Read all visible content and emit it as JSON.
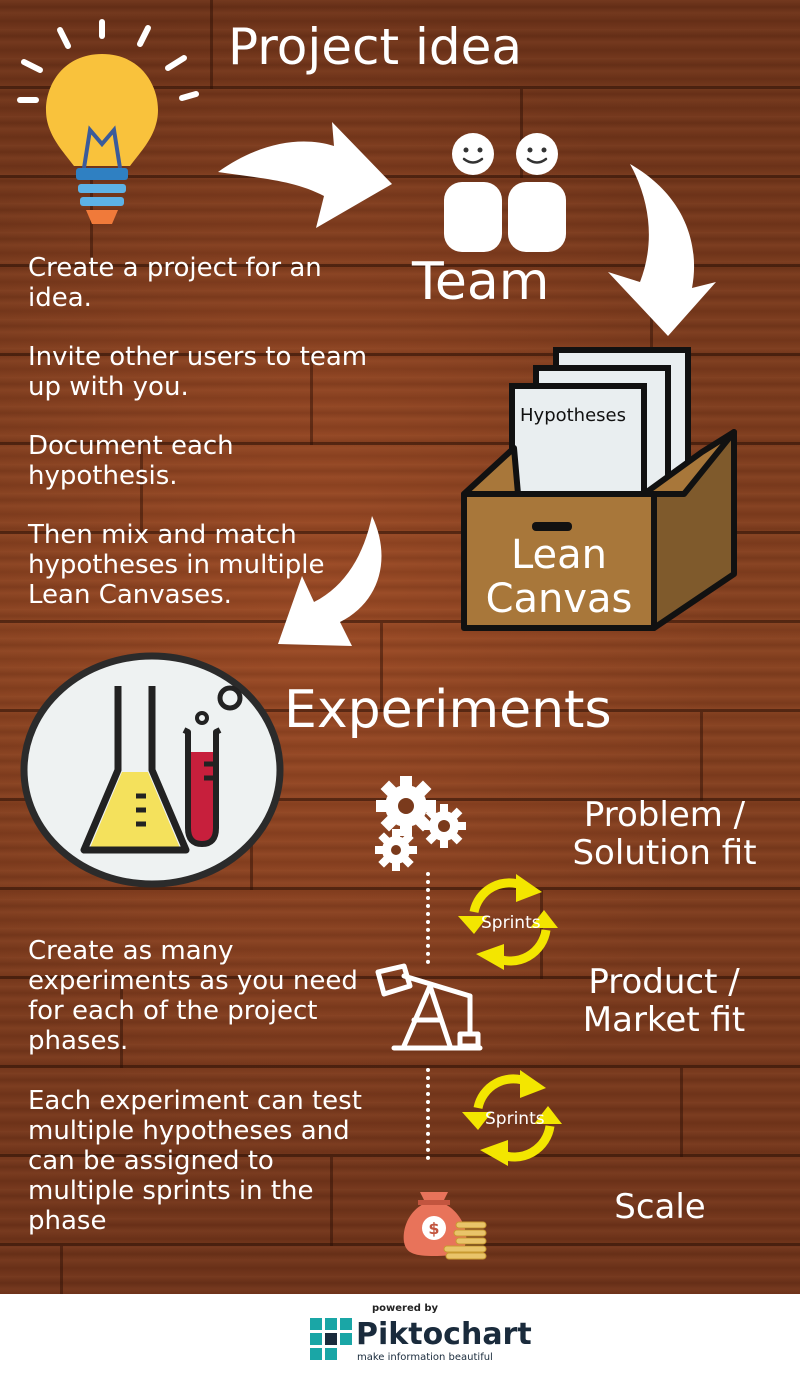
{
  "title": "Project idea",
  "team_label": "Team",
  "box": {
    "card_label": "Hypotheses",
    "label_line1": "Lean",
    "label_line2": "Canvas"
  },
  "experiments_label": "Experiments",
  "steps": [
    "Create a project for an idea.",
    "Invite other users to team up with you.",
    "Document each hypothesis.",
    "Then mix and match hypotheses in multiple Lean Canvases."
  ],
  "experiments_text": [
    "Create as many experiments as you need for each of the project phases.",
    "Each experiment can test multiple hypotheses and can be assigned to multiple sprints in the phase"
  ],
  "phases": {
    "problem_line1": "Problem /",
    "problem_line2": "Solution fit",
    "product_line1": "Product /",
    "product_line2": "Market fit",
    "scale": "Scale"
  },
  "sprint_label": "Sprints",
  "footer": {
    "powered": "powered by",
    "brand": "Piktochart",
    "tagline": "make information beautiful"
  },
  "colors": {
    "bulb": "#f9c23c",
    "flask_liquid": "#f4e15c",
    "tube_liquid": "#c71f3c",
    "box": "#a8773a",
    "sprint_arrows": "#f3e600",
    "money_bag": "#e8735a",
    "coins": "#e9c46a"
  },
  "icons": [
    "lightbulb-icon",
    "team-icon",
    "lean-canvas-box-icon",
    "lab-flask-icon",
    "gears-icon",
    "oil-pump-icon",
    "money-bag-icon",
    "sprint-cycle-icon",
    "piktochart-logo-icon"
  ]
}
